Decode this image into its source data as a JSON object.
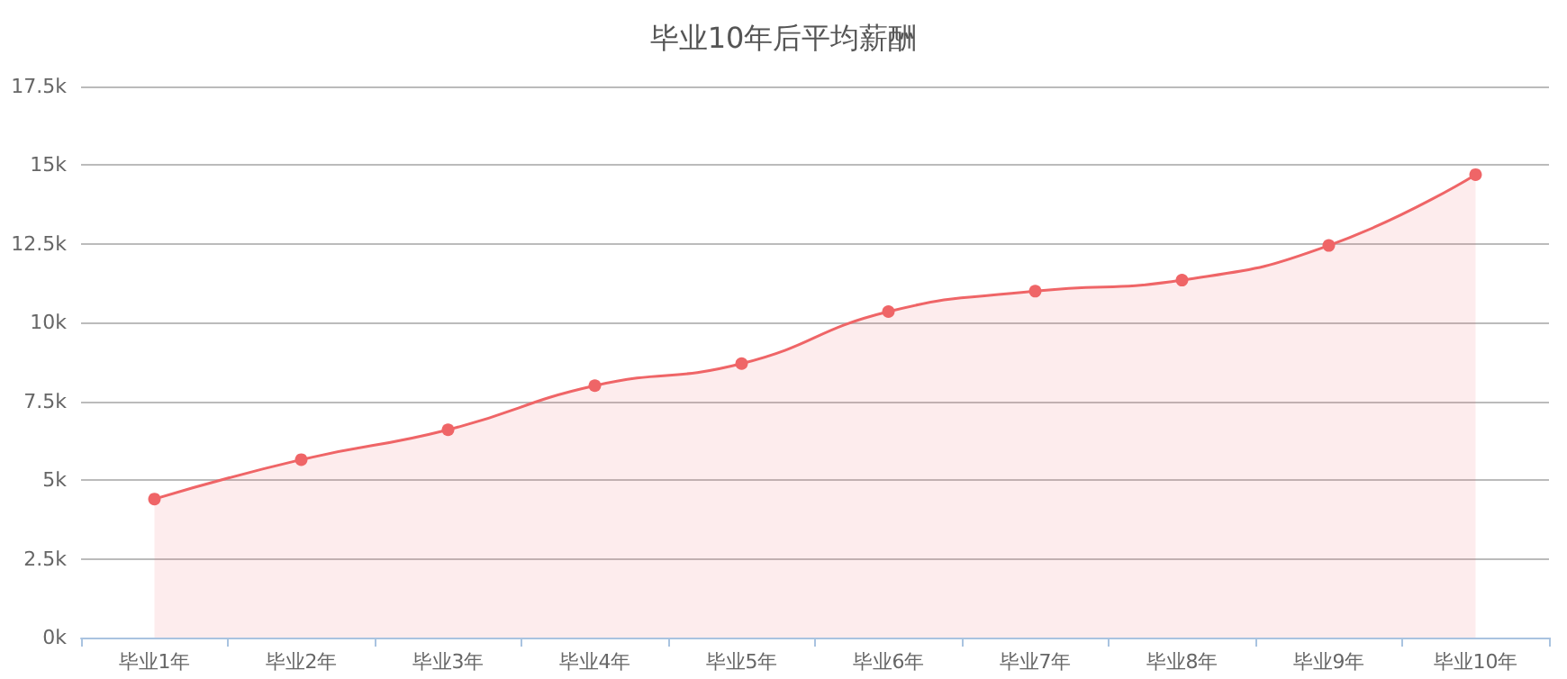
{
  "chart_data": {
    "type": "area",
    "title": "毕业10年后平均薪酬",
    "categories": [
      "毕业1年",
      "毕业2年",
      "毕业3年",
      "毕业4年",
      "毕业5年",
      "毕业6年",
      "毕业7年",
      "毕业8年",
      "毕业9年",
      "毕业10年"
    ],
    "series": [
      {
        "color": "#ef6567",
        "values": [
          4400,
          5650,
          6600,
          8000,
          8700,
          10350,
          11000,
          11350,
          12450,
          14700
        ]
      }
    ],
    "ylim": [
      0,
      17500
    ],
    "yticks": [
      {
        "value": 0,
        "label": "0k"
      },
      {
        "value": 2500,
        "label": "2.5k"
      },
      {
        "value": 5000,
        "label": "5k"
      },
      {
        "value": 7500,
        "label": "7.5k"
      },
      {
        "value": 10000,
        "label": "10k"
      },
      {
        "value": 12500,
        "label": "12.5k"
      },
      {
        "value": 15000,
        "label": "15k"
      },
      {
        "value": 17500,
        "label": "17.5k"
      }
    ],
    "grid": "y",
    "marker": "circle",
    "line_style": "solid"
  }
}
